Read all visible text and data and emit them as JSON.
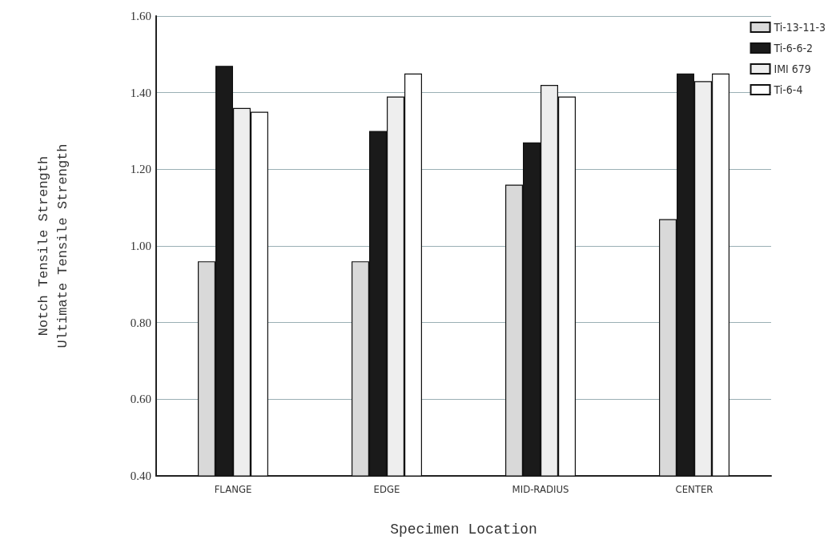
{
  "chart_data": {
    "type": "bar",
    "xlabel": "Specimen Location",
    "ylabel": "Notch Tensile Strength\nUltimate Tensile Strength",
    "categories": [
      "FLANGE",
      "EDGE",
      "MID-RADIUS",
      "CENTER"
    ],
    "series": [
      {
        "name": "Ti-13-11-3",
        "color": "#d9d9d9",
        "values": [
          0.96,
          0.96,
          1.16,
          1.07
        ]
      },
      {
        "name": "Ti-6-6-2",
        "color": "#1a1a1a",
        "values": [
          1.47,
          1.3,
          1.27,
          1.45
        ]
      },
      {
        "name": "IMI 679",
        "color": "#eeeeee",
        "values": [
          1.36,
          1.39,
          1.42,
          1.43
        ]
      },
      {
        "name": "Ti-6-4",
        "color": "#ffffff",
        "values": [
          1.35,
          1.45,
          1.39,
          1.45
        ]
      }
    ],
    "ylim": [
      0.4,
      1.6
    ],
    "yticks": [
      {
        "value": 0.4,
        "label": "0.40"
      },
      {
        "value": 0.6,
        "label": "0.60"
      },
      {
        "value": 0.8,
        "label": "0.80"
      },
      {
        "value": 1.0,
        "label": "1.00"
      },
      {
        "value": 1.2,
        "label": "1.20"
      },
      {
        "value": 1.4,
        "label": "1.40"
      },
      {
        "value": 1.6,
        "label": "1.60"
      }
    ],
    "grid": "y",
    "legend": "top right"
  }
}
